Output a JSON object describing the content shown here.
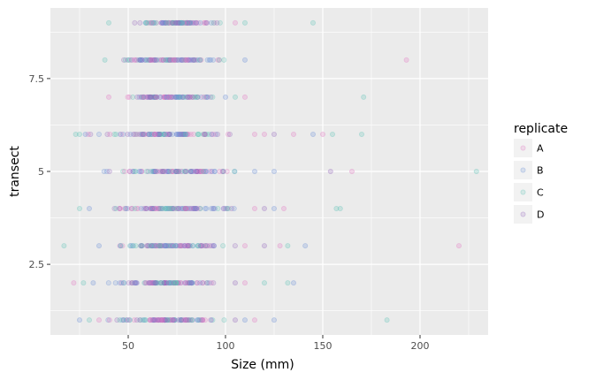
{
  "chart_data": {
    "type": "scatter",
    "title": "",
    "xlabel": "Size (mm)",
    "ylabel": "transect",
    "xlim": [
      10,
      235
    ],
    "ylim": [
      0.6,
      9.4
    ],
    "x_ticks": [
      50,
      100,
      150,
      200
    ],
    "x_tick_labels": [
      "50",
      "100",
      "150",
      "200"
    ],
    "y_ticks": [
      2.5,
      5,
      7.5
    ],
    "y_tick_labels": [
      "2.5",
      "5",
      "7.5"
    ],
    "grid": true,
    "legend_position": "right",
    "legend_title": "replicate",
    "series": [
      {
        "name": "A",
        "color": "#e377c2"
      },
      {
        "name": "B",
        "color": "#6b8fd6"
      },
      {
        "name": "C",
        "color": "#5ec4b6"
      },
      {
        "name": "D",
        "color": "#9467bd"
      }
    ],
    "point_opacity": 0.2,
    "transects": [
      {
        "y": 1,
        "core": [
          40,
          100
        ],
        "outliers": [
          [
            25,
            "B"
          ],
          [
            30,
            "C"
          ],
          [
            35,
            "A"
          ],
          [
            105,
            "D"
          ],
          [
            110,
            "B"
          ],
          [
            115,
            "A"
          ],
          [
            125,
            "B"
          ],
          [
            183,
            "C"
          ]
        ]
      },
      {
        "y": 2,
        "core": [
          42,
          100
        ],
        "outliers": [
          [
            22,
            "A"
          ],
          [
            27,
            "C"
          ],
          [
            32,
            "B"
          ],
          [
            105,
            "D"
          ],
          [
            110,
            "A"
          ],
          [
            120,
            "C"
          ],
          [
            132,
            "C"
          ],
          [
            135,
            "B"
          ]
        ]
      },
      {
        "y": 3,
        "core": [
          40,
          105
        ],
        "outliers": [
          [
            17,
            "C"
          ],
          [
            35,
            "B"
          ],
          [
            110,
            "A"
          ],
          [
            120,
            "D"
          ],
          [
            128,
            "A"
          ],
          [
            132,
            "C"
          ],
          [
            141,
            "B"
          ],
          [
            220,
            "A"
          ]
        ]
      },
      {
        "y": 4,
        "core": [
          35,
          110
        ],
        "outliers": [
          [
            25,
            "C"
          ],
          [
            30,
            "B"
          ],
          [
            115,
            "A"
          ],
          [
            120,
            "D"
          ],
          [
            125,
            "B"
          ],
          [
            130,
            "A"
          ],
          [
            157,
            "C"
          ],
          [
            159,
            "C"
          ]
        ]
      },
      {
        "y": 5,
        "core": [
          38,
          110
        ],
        "outliers": [
          [
            115,
            "B"
          ],
          [
            125,
            "B"
          ],
          [
            154,
            "D"
          ],
          [
            165,
            "A"
          ],
          [
            229,
            "C"
          ]
        ]
      },
      {
        "y": 6,
        "core": [
          30,
          110
        ],
        "outliers": [
          [
            23,
            "C"
          ],
          [
            25,
            "C"
          ],
          [
            28,
            "B"
          ],
          [
            115,
            "A"
          ],
          [
            120,
            "A"
          ],
          [
            125,
            "D"
          ],
          [
            135,
            "A"
          ],
          [
            145,
            "B"
          ],
          [
            150,
            "A"
          ],
          [
            155,
            "C"
          ],
          [
            170,
            "C"
          ]
        ]
      },
      {
        "y": 7,
        "core": [
          45,
          95
        ],
        "outliers": [
          [
            40,
            "A"
          ],
          [
            100,
            "B"
          ],
          [
            105,
            "C"
          ],
          [
            110,
            "A"
          ],
          [
            171,
            "C"
          ]
        ]
      },
      {
        "y": 8,
        "core": [
          40,
          105
        ],
        "outliers": [
          [
            38,
            "C"
          ],
          [
            110,
            "B"
          ],
          [
            193,
            "A"
          ]
        ]
      },
      {
        "y": 9,
        "core": [
          52,
          100
        ],
        "outliers": [
          [
            40,
            "C"
          ],
          [
            105,
            "A"
          ],
          [
            110,
            "C"
          ],
          [
            145,
            "C"
          ]
        ]
      }
    ]
  }
}
